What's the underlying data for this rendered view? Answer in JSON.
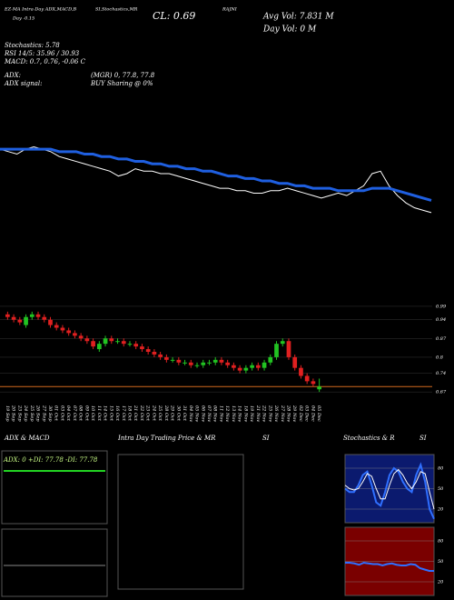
{
  "header": {
    "study": "EZ-MA Intra-Day ADX,MACD,B",
    "study2": "SI,Stochastics,MR",
    "symbol": "RAJNI",
    "change": "Day -0.15",
    "close": "CL: 0.69",
    "avg_vol": "Avg Vol: 7.831 M",
    "day_vol": "Day Vol: 0 M"
  },
  "info": {
    "stoch": "Stochastics: 5.78",
    "rsi": "RSI 14/5: 35.96 / 30.93",
    "macd": "MACD: 0.7, 0.76, -0.06 C",
    "adx": "ADX:",
    "adx_vals": "(MGR) 0, 77.8, 77.8",
    "adx_signal": "ADX signal:",
    "signal": "BUY Sharing @ 0%"
  },
  "panels": {
    "adx_title": "ADX & MACD",
    "adx_label": "ADX: 0 +DI: 77.78 -DI: 77.78",
    "intraday_title": "Intra Day Trading Price & MR",
    "intraday_suffix": "SI",
    "stoch_title": "Stochastics & R",
    "stoch_suffix": "SI"
  },
  "chart_data": [
    {
      "type": "candlestick",
      "categories": [
        "19 Sep",
        "20 Sep",
        "23 Sep",
        "24 Sep",
        "25 Sep",
        "26 Sep",
        "27 Sep",
        "30 Sep",
        "01 Oct",
        "03 Oct",
        "04 Oct",
        "07 Oct",
        "08 Oct",
        "09 Oct",
        "10 Oct",
        "11 Oct",
        "14 Oct",
        "15 Oct",
        "16 Oct",
        "17 Oct",
        "18 Oct",
        "21 Oct",
        "22 Oct",
        "23 Oct",
        "24 Oct",
        "25 Oct",
        "28 Oct",
        "29 Oct",
        "30 Oct",
        "31 Oct",
        "04 Nov",
        "05 Nov",
        "06 Nov",
        "07 Nov",
        "08 Nov",
        "11 Nov",
        "12 Nov",
        "13 Nov",
        "14 Nov",
        "18 Nov",
        "19 Nov",
        "21 Nov",
        "22 Nov",
        "25 Nov",
        "26 Nov",
        "27 Nov",
        "28 Nov",
        "29 Nov",
        "02 Dec",
        "03 Dec",
        "04 Dec",
        "05 Dec"
      ],
      "open": [
        0.96,
        0.95,
        0.94,
        0.92,
        0.95,
        0.96,
        0.95,
        0.94,
        0.92,
        0.91,
        0.9,
        0.89,
        0.88,
        0.87,
        0.86,
        0.83,
        0.85,
        0.87,
        0.86,
        0.86,
        0.85,
        0.85,
        0.84,
        0.83,
        0.82,
        0.81,
        0.8,
        0.79,
        0.79,
        0.78,
        0.78,
        0.77,
        0.77,
        0.78,
        0.78,
        0.79,
        0.78,
        0.77,
        0.76,
        0.75,
        0.76,
        0.77,
        0.76,
        0.78,
        0.8,
        0.85,
        0.86,
        0.8,
        0.76,
        0.73,
        0.71,
        0.68
      ],
      "high": [
        0.97,
        0.96,
        0.95,
        0.96,
        0.97,
        0.97,
        0.96,
        0.95,
        0.93,
        0.92,
        0.91,
        0.9,
        0.89,
        0.88,
        0.87,
        0.86,
        0.88,
        0.88,
        0.87,
        0.87,
        0.86,
        0.86,
        0.85,
        0.84,
        0.83,
        0.82,
        0.81,
        0.8,
        0.8,
        0.79,
        0.79,
        0.78,
        0.79,
        0.79,
        0.8,
        0.8,
        0.79,
        0.78,
        0.77,
        0.77,
        0.78,
        0.78,
        0.79,
        0.81,
        0.86,
        0.87,
        0.87,
        0.81,
        0.77,
        0.74,
        0.72,
        0.72
      ],
      "low": [
        0.94,
        0.93,
        0.92,
        0.91,
        0.94,
        0.94,
        0.93,
        0.91,
        0.9,
        0.89,
        0.88,
        0.87,
        0.86,
        0.85,
        0.83,
        0.82,
        0.84,
        0.85,
        0.85,
        0.84,
        0.84,
        0.83,
        0.82,
        0.81,
        0.8,
        0.79,
        0.78,
        0.78,
        0.77,
        0.77,
        0.76,
        0.76,
        0.76,
        0.77,
        0.77,
        0.77,
        0.76,
        0.75,
        0.74,
        0.74,
        0.75,
        0.75,
        0.75,
        0.77,
        0.79,
        0.84,
        0.79,
        0.75,
        0.72,
        0.7,
        0.69,
        0.67
      ],
      "close": [
        0.95,
        0.94,
        0.93,
        0.95,
        0.96,
        0.95,
        0.94,
        0.92,
        0.91,
        0.9,
        0.89,
        0.88,
        0.87,
        0.86,
        0.84,
        0.85,
        0.87,
        0.86,
        0.86,
        0.85,
        0.85,
        0.84,
        0.83,
        0.82,
        0.81,
        0.8,
        0.79,
        0.79,
        0.78,
        0.78,
        0.77,
        0.77,
        0.78,
        0.78,
        0.79,
        0.78,
        0.77,
        0.76,
        0.75,
        0.76,
        0.77,
        0.76,
        0.78,
        0.8,
        0.85,
        0.86,
        0.8,
        0.76,
        0.73,
        0.71,
        0.7,
        0.69
      ],
      "up_color": "#22c322",
      "down_color": "#e02020",
      "last_color": "#d2691e",
      "ylim": [
        0.64,
        1.0
      ],
      "yticks": [
        0.99,
        0.94,
        0.87,
        0.8,
        0.74,
        0.67
      ]
    },
    {
      "type": "line",
      "ylim": [
        0.63,
        1.04
      ],
      "series": [
        {
          "color": "#ffffff",
          "width": 1,
          "values": [
            0.95,
            0.94,
            0.93,
            0.95,
            0.96,
            0.95,
            0.94,
            0.92,
            0.91,
            0.9,
            0.89,
            0.88,
            0.87,
            0.86,
            0.84,
            0.85,
            0.87,
            0.86,
            0.86,
            0.85,
            0.85,
            0.84,
            0.83,
            0.82,
            0.81,
            0.8,
            0.79,
            0.79,
            0.78,
            0.78,
            0.77,
            0.77,
            0.78,
            0.78,
            0.79,
            0.78,
            0.77,
            0.76,
            0.75,
            0.76,
            0.77,
            0.76,
            0.78,
            0.8,
            0.85,
            0.86,
            0.8,
            0.76,
            0.73,
            0.71,
            0.7,
            0.69
          ]
        },
        {
          "color": "#1f5fe0",
          "width": 3,
          "values": [
            0.95,
            0.95,
            0.95,
            0.95,
            0.95,
            0.95,
            0.95,
            0.94,
            0.94,
            0.94,
            0.93,
            0.93,
            0.92,
            0.92,
            0.91,
            0.91,
            0.9,
            0.9,
            0.89,
            0.89,
            0.88,
            0.88,
            0.87,
            0.87,
            0.86,
            0.86,
            0.85,
            0.84,
            0.84,
            0.83,
            0.83,
            0.82,
            0.82,
            0.81,
            0.81,
            0.8,
            0.8,
            0.79,
            0.79,
            0.79,
            0.78,
            0.78,
            0.78,
            0.78,
            0.79,
            0.79,
            0.79,
            0.78,
            0.77,
            0.76,
            0.75,
            0.74
          ]
        }
      ]
    },
    {
      "type": "line",
      "background": "#0b1a6e",
      "ylim": [
        0,
        100
      ],
      "yticks": [
        80,
        50,
        20
      ],
      "series": [
        {
          "color": "#2f6fff",
          "width": 2,
          "values": [
            50,
            45,
            45,
            55,
            70,
            75,
            55,
            30,
            25,
            45,
            70,
            80,
            75,
            60,
            50,
            45,
            70,
            85,
            60,
            20,
            5.78
          ]
        },
        {
          "color": "#ffffff",
          "width": 1,
          "values": [
            55,
            50,
            48,
            50,
            60,
            72,
            68,
            50,
            35,
            35,
            55,
            72,
            78,
            70,
            58,
            50,
            60,
            75,
            72,
            45,
            20
          ]
        }
      ]
    },
    {
      "type": "line",
      "background": "#7a0000",
      "ylim": [
        0,
        100
      ],
      "yticks": [
        80,
        50,
        20
      ],
      "series": [
        {
          "color": "#2f6fff",
          "width": 2,
          "values": [
            48,
            48,
            47,
            45,
            48,
            47,
            46,
            46,
            44,
            46,
            47,
            45,
            44,
            44,
            46,
            45,
            40,
            38,
            36,
            35.96
          ]
        }
      ]
    }
  ]
}
